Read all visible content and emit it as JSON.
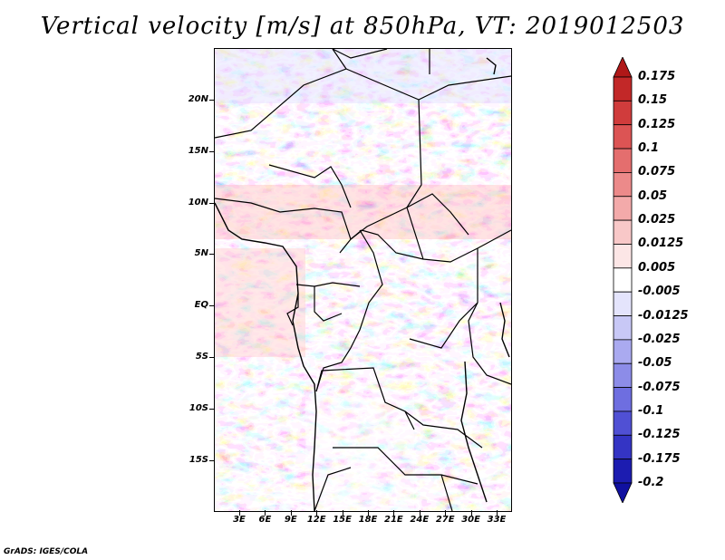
{
  "title": "Vertical velocity [m/s] at 850hPa, VT: 2019012503",
  "credit": "GrADS: IGES/COLA",
  "map": {
    "lat_labels": [
      "20N",
      "15N",
      "10N",
      "5N",
      "EQ",
      "5S",
      "10S",
      "15S"
    ],
    "lon_labels": [
      "3E",
      "6E",
      "9E",
      "12E",
      "15E",
      "18E",
      "21E",
      "24E",
      "27E",
      "30E",
      "33E"
    ]
  },
  "colorbar": {
    "labels": [
      "0.175",
      "0.15",
      "0.125",
      "0.1",
      "0.075",
      "0.05",
      "0.025",
      "0.0125",
      "0.005",
      "-0.005",
      "-0.0125",
      "-0.025",
      "-0.05",
      "-0.075",
      "-0.1",
      "-0.125",
      "-0.175",
      "-0.2"
    ],
    "colors": [
      "#b01818",
      "#c22828",
      "#d03c3c",
      "#dc5454",
      "#e46e6e",
      "#ec8a8a",
      "#f3aaaa",
      "#f8c8c8",
      "#fce6e6",
      "#ffffff",
      "#e4e4fc",
      "#c8c8f6",
      "#aaaaf0",
      "#8c8ce8",
      "#6e6ee0",
      "#5050d4",
      "#3434c4",
      "#1c1cb0",
      "#1010a0"
    ]
  }
}
